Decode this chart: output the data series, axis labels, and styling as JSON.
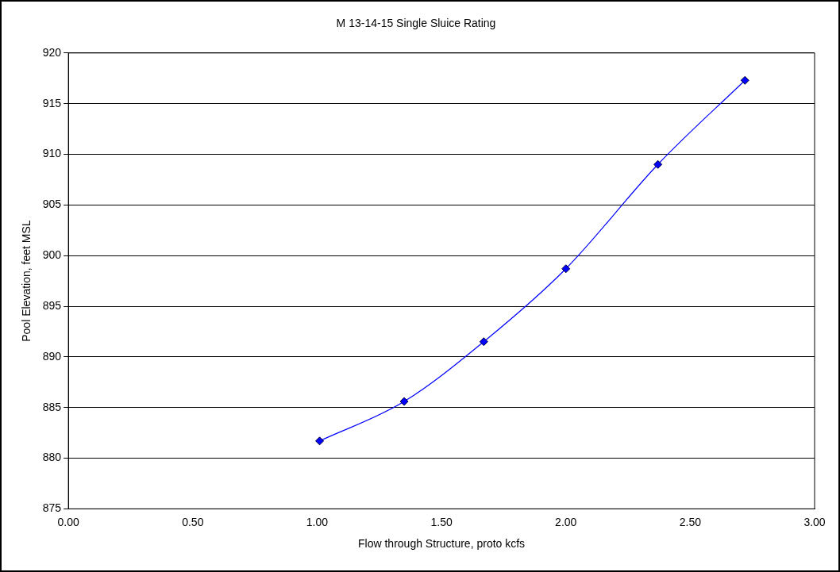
{
  "chart_data": {
    "type": "line",
    "title": "M 13-14-15 Single Sluice Rating",
    "xlabel": "Flow through Structure, proto kcfs",
    "ylabel": "Pool Elevation, feet MSL",
    "x": [
      1.01,
      1.35,
      1.67,
      2.0,
      2.37,
      2.72
    ],
    "series": [
      {
        "color": "#0000ff",
        "values": [
          881.7,
          885.6,
          891.5,
          898.7,
          909.0,
          917.3
        ]
      }
    ],
    "xlim": [
      0,
      3
    ],
    "xticks": [
      {
        "value": 0,
        "label": "0.00"
      },
      {
        "value": 0.5,
        "label": "0.50"
      },
      {
        "value": 1,
        "label": "1.00"
      },
      {
        "value": 1.5,
        "label": "1.50"
      },
      {
        "value": 2,
        "label": "2.00"
      },
      {
        "value": 2.5,
        "label": "2.50"
      },
      {
        "value": 3,
        "label": "3.00"
      }
    ],
    "ylim": [
      875,
      920
    ],
    "yticks": [
      875,
      880,
      885,
      890,
      895,
      900,
      905,
      910,
      915,
      920
    ],
    "grid": "y",
    "legend": false,
    "marker": "diamond",
    "line_style": "solid"
  }
}
